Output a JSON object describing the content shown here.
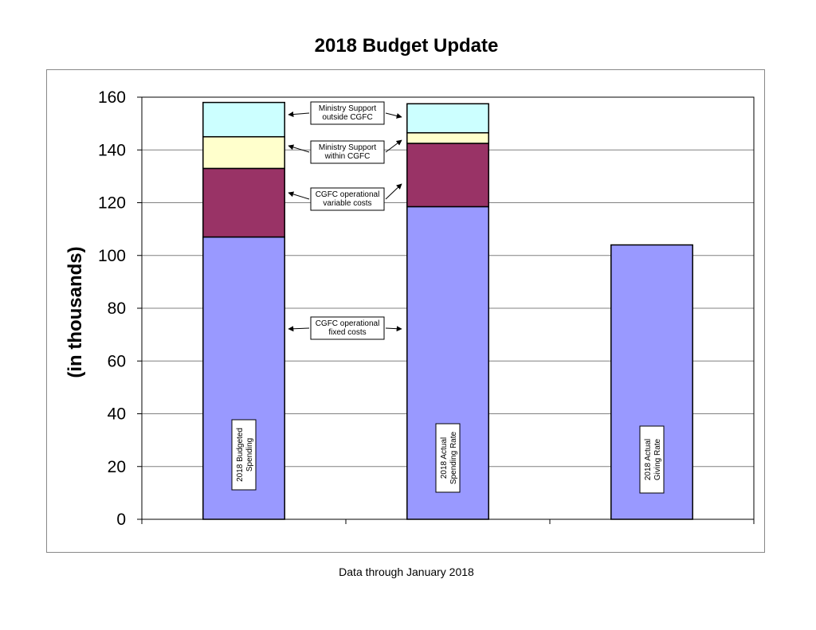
{
  "chart_data": {
    "type": "bar",
    "stacked": true,
    "title": "2018 Budget Update",
    "ylabel": "(in thousands)",
    "xlabel": "",
    "ylim": [
      0,
      160
    ],
    "yticks": [
      0,
      20,
      40,
      60,
      80,
      100,
      120,
      140,
      160
    ],
    "grid": true,
    "categories": [
      "2018 Budgeted Spending",
      "2018 Actual Spending Rate",
      "2018 Actual Giving Rate"
    ],
    "category_label_lines": [
      [
        "2018  Budgeted",
        "Spending"
      ],
      [
        "2018 Actual",
        "Spending Rate"
      ],
      [
        "2018 Actual",
        "Giving Rate"
      ]
    ],
    "series": [
      {
        "values": [
          107,
          118.5,
          104
        ],
        "color": "#9999ff"
      },
      {
        "values": [
          26,
          24,
          0
        ],
        "color": "#993366"
      },
      {
        "values": [
          12,
          4,
          0
        ],
        "color": "#ffffcc"
      },
      {
        "values": [
          13,
          11,
          0
        ],
        "color": "#ccffff"
      }
    ],
    "annotations": [
      {
        "lines": [
          "Ministry Support",
          "outside CGFC"
        ]
      },
      {
        "lines": [
          "Ministry Support",
          "within  CGFC"
        ]
      },
      {
        "lines": [
          "CGFC operational",
          "variable costs"
        ]
      },
      {
        "lines": [
          "CGFC operational",
          "fixed costs"
        ]
      }
    ],
    "footnote": "Data through January 2018"
  }
}
